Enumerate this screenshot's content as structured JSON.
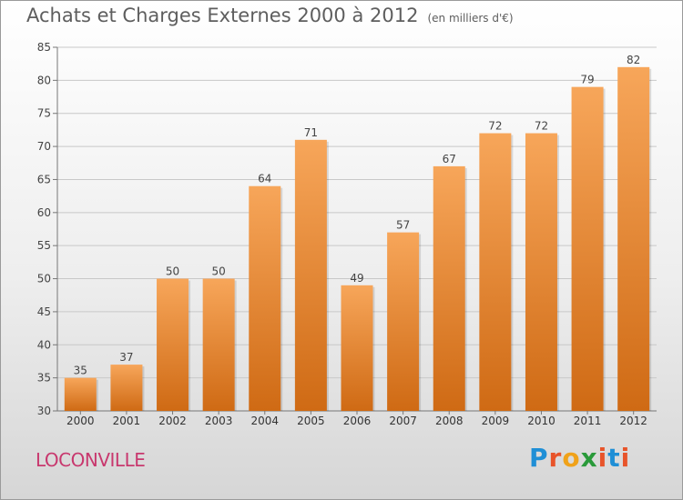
{
  "header": {
    "title": "Achats et Charges Externes 2000 à 2012",
    "unit": "(en milliers d'€)"
  },
  "footer": {
    "city": "LOCONVILLE",
    "logo_text": "Proxiti"
  },
  "colors": {
    "bar_top": "#f7a65a",
    "bar_bottom": "#cf6a14",
    "grid": "#c8c8c8",
    "city": "#c8386e",
    "logo_letters": [
      "#1f8fd6",
      "#e8542a",
      "#f0a21a",
      "#2a9a3a",
      "#e8542a",
      "#1f8fd6",
      "#e8542a"
    ]
  },
  "chart_data": {
    "type": "bar",
    "title": "Achats et Charges Externes 2000 à 2012",
    "xlabel": "",
    "ylabel": "",
    "categories": [
      "2000",
      "2001",
      "2002",
      "2003",
      "2004",
      "2005",
      "2006",
      "2007",
      "2008",
      "2009",
      "2010",
      "2011",
      "2012"
    ],
    "values": [
      35,
      37,
      50,
      50,
      64,
      71,
      49,
      57,
      67,
      72,
      72,
      79,
      82
    ],
    "ylim": [
      30,
      85
    ],
    "yticks": [
      30,
      35,
      40,
      45,
      50,
      55,
      60,
      65,
      70,
      75,
      80,
      85
    ],
    "grid": true,
    "data_labels": true
  }
}
